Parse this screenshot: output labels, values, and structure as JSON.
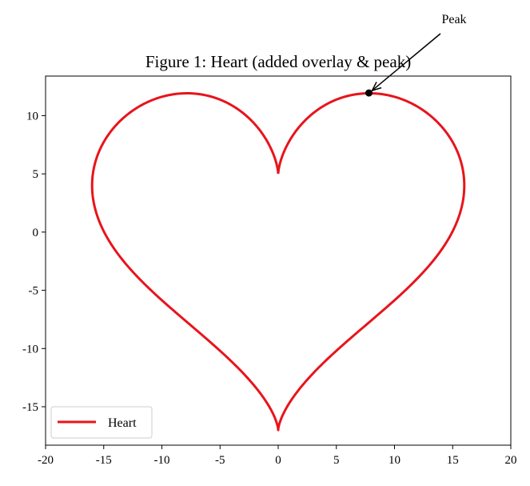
{
  "chart_data": {
    "type": "line",
    "title": "Figure 1: Heart (added overlay & peak)",
    "xlabel": "",
    "ylabel": "",
    "xlim": [
      -20,
      20
    ],
    "ylim": [
      -18.3,
      13.4
    ],
    "xticks": [
      -20,
      -15,
      -10,
      -5,
      0,
      5,
      10,
      15,
      20
    ],
    "yticks": [
      -15,
      -10,
      -5,
      0,
      5,
      10
    ],
    "grid": false,
    "legend_position": "lower-left",
    "series": [
      {
        "name": "Heart",
        "color": "#e8141b",
        "curve": "x = 16 sin^3(t), y = 13 cos(t) - 5 cos(2t) - 2 cos(3t) - cos(4t), t in [0, 2pi]",
        "points": [
          [
            0.0,
            5.0
          ],
          [
            1.1,
            6.6
          ],
          [
            3.5,
            9.6
          ],
          [
            7.8,
            11.9
          ],
          [
            11.5,
            11.0
          ],
          [
            14.7,
            8.4
          ],
          [
            16.0,
            4.0
          ],
          [
            15.0,
            0.3
          ],
          [
            12.6,
            -3.2
          ],
          [
            8.0,
            -7.4
          ],
          [
            3.9,
            -11.6
          ],
          [
            0.8,
            -15.3
          ],
          [
            0.0,
            -17.0
          ],
          [
            -0.8,
            -15.3
          ],
          [
            -3.9,
            -11.6
          ],
          [
            -8.0,
            -7.4
          ],
          [
            -12.6,
            -3.2
          ],
          [
            -15.0,
            0.3
          ],
          [
            -16.0,
            4.0
          ],
          [
            -14.7,
            8.4
          ],
          [
            -11.5,
            11.0
          ],
          [
            -7.8,
            11.9
          ],
          [
            -3.5,
            9.6
          ],
          [
            -1.1,
            6.6
          ],
          [
            0.0,
            5.0
          ]
        ]
      }
    ],
    "annotations": [
      {
        "text": "Peak",
        "point": [
          7.8,
          11.95
        ],
        "marker": "circle",
        "arrow": true,
        "text_anchor": "upper-right"
      }
    ]
  }
}
